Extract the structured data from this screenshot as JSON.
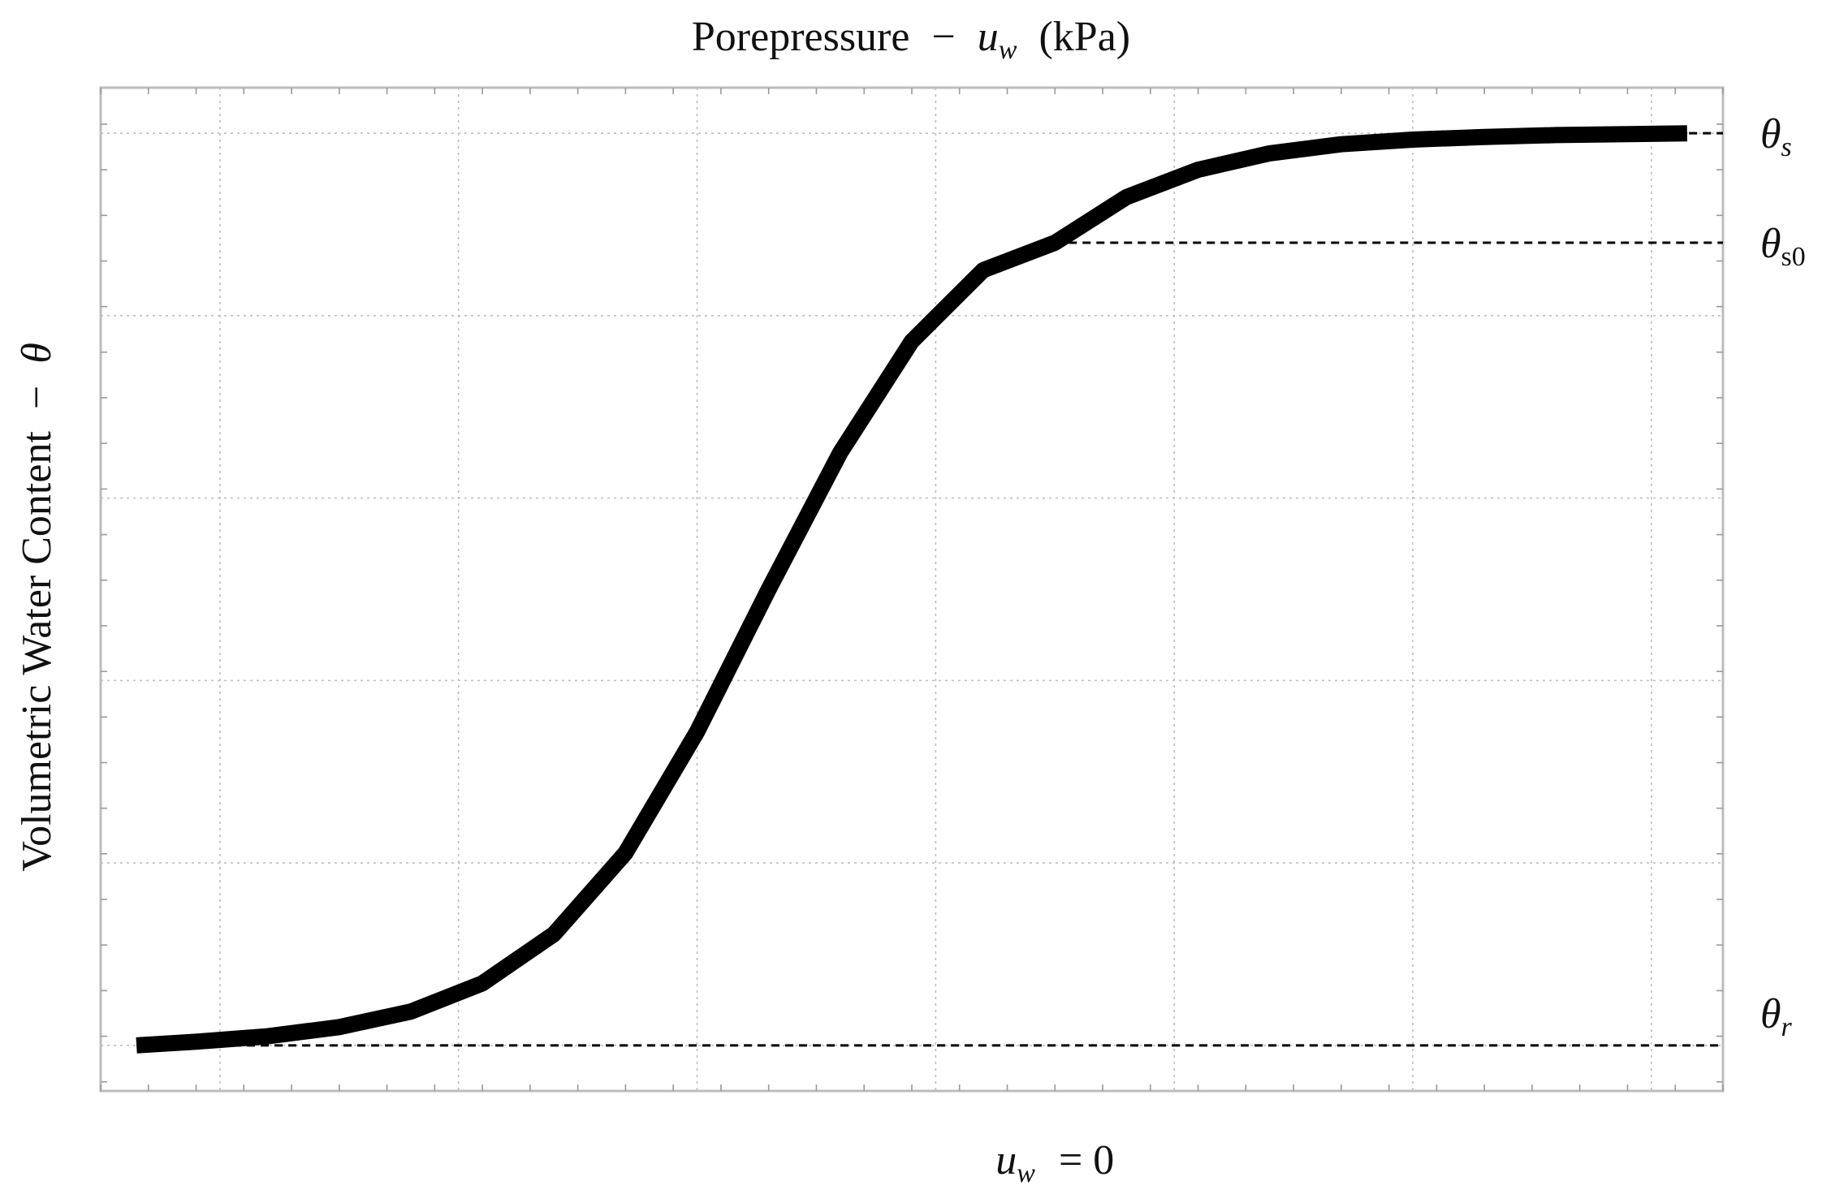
{
  "chart_data": {
    "type": "line",
    "title": "Porepressure",
    "title_separator": "−",
    "title_symbol": "u",
    "title_symbol_sub": "w",
    "title_unit": "(kPa)",
    "ylabel_text": "Volumetric Water Content",
    "ylabel_separator": "−",
    "ylabel_symbol": "θ",
    "x_marker": {
      "symbol": "u",
      "sub": "w",
      "relation": "= 0",
      "x": 0
    },
    "xlim": [
      -4,
      2.8
    ],
    "ylim": [
      -0.05,
      1.05
    ],
    "grid": true,
    "legend": "none",
    "colors": {
      "curve": "#000000",
      "grid": "#bdbdbd",
      "frame": "#bdbdbd"
    },
    "series": [
      {
        "x": [
          -3.85,
          -3.6,
          -3.3,
          -3.0,
          -2.7,
          -2.4,
          -2.1,
          -1.8,
          -1.5,
          -1.2,
          -0.9,
          -0.6,
          -0.3,
          0.0,
          0.3,
          0.6,
          0.9,
          1.2,
          1.5,
          1.8,
          2.1,
          2.4,
          2.65
        ],
        "y": [
          0.0,
          0.004,
          0.01,
          0.02,
          0.037,
          0.068,
          0.122,
          0.211,
          0.344,
          0.5,
          0.65,
          0.772,
          0.85,
          0.88,
          0.93,
          0.96,
          0.978,
          0.988,
          0.993,
          0.996,
          0.998,
          0.999,
          1.0
        ]
      }
    ],
    "reference_lines": [
      {
        "symbol": "θ",
        "sub": "s",
        "y": 1.0,
        "x_from": 2.6
      },
      {
        "symbol": "θ",
        "sub": "s0",
        "y": 0.88,
        "x_from": 0.0
      },
      {
        "symbol": "θ",
        "sub": "r",
        "y": 0.0,
        "x_from": -3.85
      }
    ]
  }
}
